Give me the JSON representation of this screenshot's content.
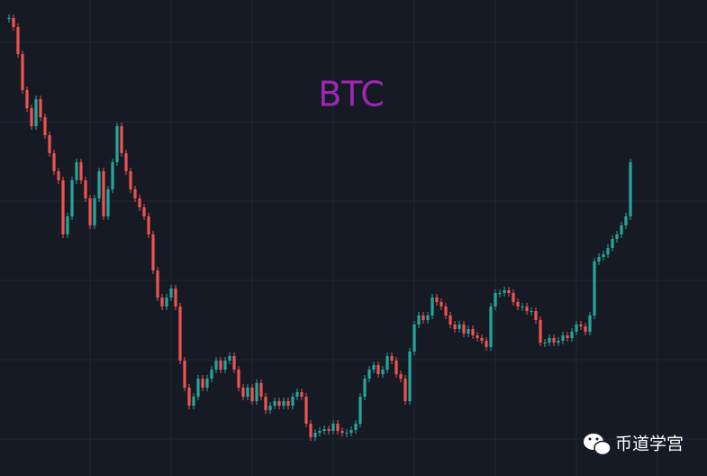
{
  "chart_data": {
    "type": "candlestick",
    "title": "BTC",
    "title_color": "#9c27b0",
    "watermark": "币道学宫",
    "up_color": "#26a69a",
    "down_color": "#ef5350",
    "ylim": [
      0,
      528
    ],
    "values": [
      508,
      498,
      468,
      428,
      408,
      388,
      418,
      398,
      378,
      358,
      338,
      328,
      268,
      288,
      328,
      348,
      328,
      308,
      278,
      308,
      338,
      288,
      318,
      348,
      388,
      358,
      338,
      318,
      308,
      298,
      288,
      268,
      228,
      198,
      188,
      198,
      208,
      188,
      128,
      98,
      78,
      88,
      108,
      98,
      108,
      118,
      128,
      118,
      128,
      133,
      118,
      98,
      88,
      98,
      83,
      103,
      88,
      73,
      78,
      83,
      78,
      83,
      78,
      88,
      93,
      88,
      58,
      43,
      48,
      50,
      52,
      50,
      58,
      50,
      48,
      48,
      51,
      58,
      88,
      108,
      118,
      123,
      113,
      118,
      133,
      128,
      113,
      108,
      83,
      138,
      168,
      178,
      173,
      178,
      198,
      193,
      188,
      178,
      168,
      163,
      168,
      158,
      163,
      156,
      153,
      150,
      143,
      188,
      203,
      203,
      206,
      203,
      193,
      188,
      188,
      183,
      183,
      173,
      148,
      148,
      153,
      148,
      150,
      156,
      153,
      160,
      168,
      166,
      160,
      178,
      238,
      243,
      246,
      253,
      263,
      268,
      278,
      288,
      348
    ],
    "grid": true
  }
}
